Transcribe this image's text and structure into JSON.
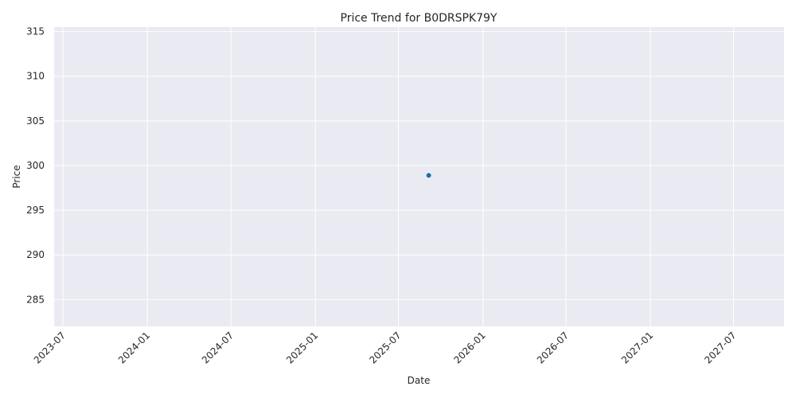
{
  "chart_data": {
    "type": "scatter",
    "title": "Price Trend for B0DRSPK79Y",
    "xlabel": "Date",
    "ylabel": "Price",
    "x_axis_kind": "date",
    "xlim": [
      "2023-06-12",
      "2027-10-19"
    ],
    "ylim": [
      282.0,
      315.5
    ],
    "x_ticks": [
      "2023-07",
      "2024-01",
      "2024-07",
      "2025-01",
      "2025-07",
      "2026-01",
      "2026-07",
      "2027-01",
      "2027-07"
    ],
    "y_ticks": [
      285,
      290,
      295,
      300,
      305,
      310,
      315
    ],
    "grid": true,
    "colors": {
      "background": "#eaeaf2",
      "grid": "#ffffff",
      "point": "#1f6fa8",
      "text": "#262626"
    },
    "series": [
      {
        "x": [
          "2025-09-05"
        ],
        "y": [
          298.9
        ]
      }
    ]
  }
}
